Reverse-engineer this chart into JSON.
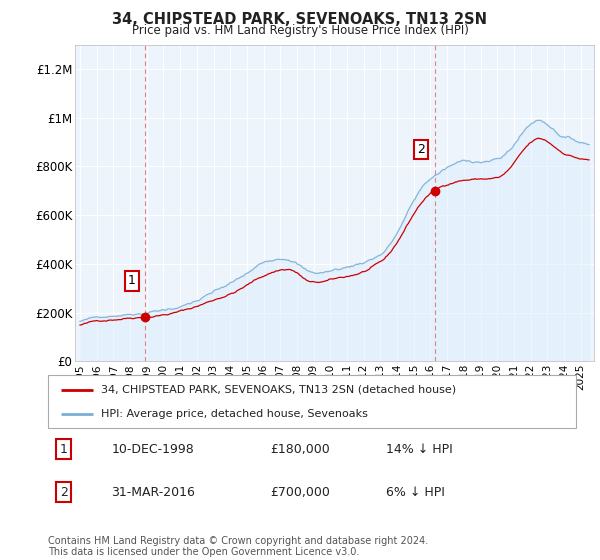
{
  "title": "34, CHIPSTEAD PARK, SEVENOAKS, TN13 2SN",
  "subtitle": "Price paid vs. HM Land Registry's House Price Index (HPI)",
  "legend_line1": "34, CHIPSTEAD PARK, SEVENOAKS, TN13 2SN (detached house)",
  "legend_line2": "HPI: Average price, detached house, Sevenoaks",
  "sale1_date": "10-DEC-1998",
  "sale1_price": "£180,000",
  "sale1_hpi": "14% ↓ HPI",
  "sale2_date": "31-MAR-2016",
  "sale2_price": "£700,000",
  "sale2_hpi": "6% ↓ HPI",
  "footer": "Contains HM Land Registry data © Crown copyright and database right 2024.\nThis data is licensed under the Open Government Licence v3.0.",
  "vline_color": "#e08080",
  "sale_color": "#cc0000",
  "hpi_color": "#7ab0d4",
  "hpi_fill_color": "#ddeeff",
  "background_color": "#eef4fb",
  "grid_color": "#ffffff",
  "outer_bg": "#ffffff",
  "ylim": [
    0,
    1300000
  ],
  "yticks": [
    0,
    200000,
    400000,
    600000,
    800000,
    1000000,
    1200000
  ],
  "ytick_labels": [
    "£0",
    "£200K",
    "£400K",
    "£600K",
    "£800K",
    "£1M",
    "£1.2M"
  ],
  "sale1_year": 1998.92,
  "sale1_value": 180000,
  "sale2_year": 2016.25,
  "sale2_value": 700000,
  "xstart": 1995.0,
  "xend": 2025.5
}
